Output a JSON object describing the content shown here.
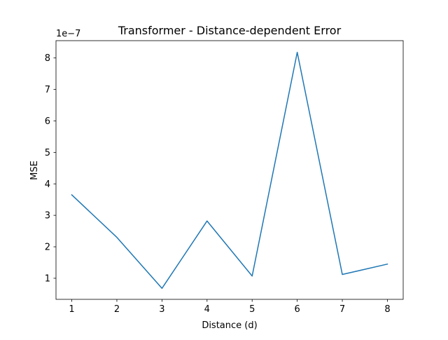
{
  "chart_data": {
    "type": "line",
    "title": "Transformer - Distance-dependent Error",
    "xlabel": "Distance (d)",
    "ylabel": "MSE",
    "y_offset_label": "1e−7",
    "x_ticks": [
      "1",
      "2",
      "3",
      "4",
      "5",
      "6",
      "7",
      "8"
    ],
    "y_ticks": [
      "1",
      "2",
      "3",
      "4",
      "5",
      "6",
      "7",
      "8"
    ],
    "xlim": [
      0.65,
      8.35
    ],
    "ylim": [
      3.3e-08,
      8.55e-07
    ],
    "grid": false,
    "line_color": "#1f77b4",
    "series": [
      {
        "x": [
          1,
          2,
          3,
          4,
          5,
          6,
          7,
          8
        ],
        "values": [
          3.65e-07,
          2.3e-07,
          6.8e-08,
          2.82e-07,
          1.07e-07,
          8.18e-07,
          1.12e-07,
          1.45e-07
        ]
      }
    ]
  }
}
